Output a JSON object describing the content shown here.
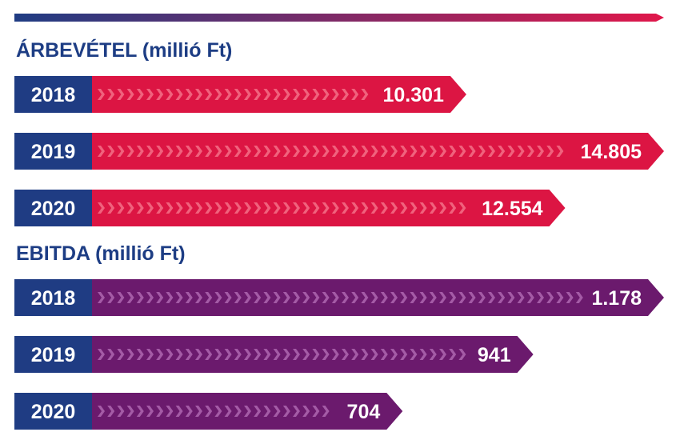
{
  "colors": {
    "year_box": "#1f3c83",
    "revenue_bar": "#dc1543",
    "revenue_chevron": "#f0627d",
    "ebitda_bar": "#6b1a6d",
    "ebitda_chevron": "#a45ba6",
    "title": "#1d3d84",
    "rule_start": "#1f3c83",
    "rule_end": "#e0174a"
  },
  "chart_data": [
    {
      "type": "bar",
      "orientation": "horizontal",
      "title": "ÁRBEVÉTEL (millió Ft)",
      "categories": [
        "2018",
        "2019",
        "2020"
      ],
      "values": [
        10301,
        14805,
        12554
      ],
      "value_labels": [
        "10.301",
        "14.805",
        "12.554"
      ],
      "xlim": [
        0,
        14805
      ]
    },
    {
      "type": "bar",
      "orientation": "horizontal",
      "title": "EBITDA (millió Ft)",
      "categories": [
        "2018",
        "2019",
        "2020"
      ],
      "values": [
        1178,
        941,
        704
      ],
      "value_labels": [
        "1.178",
        "941",
        "704"
      ],
      "xlim": [
        0,
        1178
      ]
    }
  ]
}
